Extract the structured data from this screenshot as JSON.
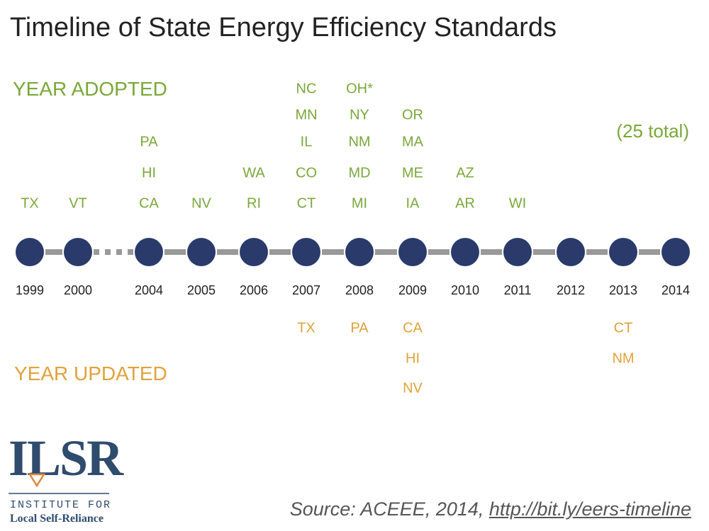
{
  "header": {
    "title": "Timeline of State Energy Efficiency Standards"
  },
  "adopted_label": "YEAR ADOPTED",
  "updated_label": "YEAR UPDATED",
  "total_note": "(25 total)",
  "timeline": [
    {
      "year": "1999",
      "adopted": [
        "TX"
      ],
      "updated": []
    },
    {
      "year": "2000",
      "adopted": [
        "VT"
      ],
      "updated": []
    },
    {
      "year": "2004",
      "adopted": [
        "CA",
        "HI",
        "PA"
      ],
      "updated": []
    },
    {
      "year": "2005",
      "adopted": [
        "NV"
      ],
      "updated": []
    },
    {
      "year": "2006",
      "adopted": [
        "RI",
        "WA"
      ],
      "updated": []
    },
    {
      "year": "2007",
      "adopted": [
        "CT",
        "CO",
        "IL",
        "MN",
        "NC"
      ],
      "updated": [
        "TX"
      ]
    },
    {
      "year": "2008",
      "adopted": [
        "MI",
        "MD",
        "NM",
        "NY",
        "OH*"
      ],
      "updated": [
        "PA"
      ]
    },
    {
      "year": "2009",
      "adopted": [
        "IA",
        "ME",
        "MA",
        "OR"
      ],
      "updated": [
        "CA",
        "HI",
        "NV"
      ]
    },
    {
      "year": "2010",
      "adopted": [
        "AR",
        "AZ"
      ],
      "updated": []
    },
    {
      "year": "2011",
      "adopted": [
        "WI"
      ],
      "updated": []
    },
    {
      "year": "2012",
      "adopted": [],
      "updated": []
    },
    {
      "year": "2013",
      "adopted": [],
      "updated": [
        "CT",
        "NM"
      ]
    },
    {
      "year": "2014",
      "adopted": [],
      "updated": []
    }
  ],
  "source": {
    "text": "Source: ACEEE, 2014, ",
    "link": "http://bit.ly/eers-timeline"
  },
  "logo": {
    "mark": "ILSR",
    "line1": "INSTITUTE FOR",
    "line2": "Local Self-Reliance"
  }
}
